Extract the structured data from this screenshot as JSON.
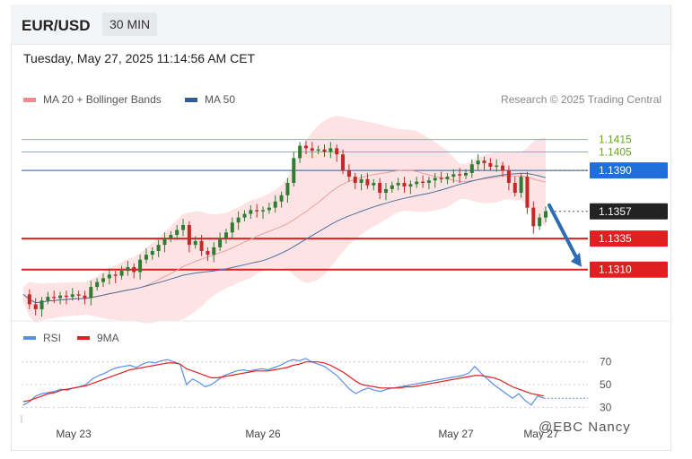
{
  "header": {
    "pair": "EUR/USD",
    "timeframe": "30 MIN"
  },
  "timestamp": "Tuesday, May 27, 2025 11:14:56 AM CET",
  "legend": [
    {
      "label": "MA 20 + Bollinger Bands",
      "color": "#f08c8c"
    },
    {
      "label": "MA 50",
      "color": "#2f5d96"
    }
  ],
  "credit": "Research © 2025 Trading Central",
  "watermark": "@EBC Nancy",
  "colors": {
    "bb_fill": "#fde3e3",
    "ma20": "#e9a0a0",
    "ma50": "#4a6fa5",
    "up": "#2e7d32",
    "down": "#c62828",
    "resistance_green": "#8bc34a",
    "support_red": "#e02020",
    "current_dark": "#222222",
    "ma50_blue": "#1e6fd9",
    "rsi": "#5a8ee6",
    "rsi_ma": "#e02020",
    "arrow": "#2e6bb5"
  },
  "chart_data": [
    {
      "type": "candlestick",
      "title": "",
      "x_ticks": [
        "May 23",
        "May 26",
        "May 27",
        "May 27"
      ],
      "y_range": [
        1.127,
        1.1435
      ],
      "close_path": [
        1.129,
        1.1282,
        1.1278,
        1.1285,
        1.1288,
        1.1287,
        1.1289,
        1.1288,
        1.129,
        1.1289,
        1.1287,
        1.1296,
        1.13,
        1.1303,
        1.1306,
        1.1305,
        1.1309,
        1.1312,
        1.1308,
        1.1318,
        1.1322,
        1.1325,
        1.133,
        1.1335,
        1.1338,
        1.1342,
        1.1346,
        1.133,
        1.1333,
        1.1325,
        1.1322,
        1.1328,
        1.1335,
        1.134,
        1.1348,
        1.1352,
        1.1355,
        1.1358,
        1.1357,
        1.1358,
        1.136,
        1.1365,
        1.137,
        1.138,
        1.14,
        1.141,
        1.1408,
        1.1406,
        1.1407,
        1.1405,
        1.1408,
        1.1403,
        1.139,
        1.1385,
        1.138,
        1.1383,
        1.1378,
        1.138,
        1.1372,
        1.1375,
        1.1378,
        1.138,
        1.1377,
        1.1379,
        1.1381,
        1.138,
        1.1382,
        1.1384,
        1.1383,
        1.1385,
        1.1387,
        1.1386,
        1.1388,
        1.1395,
        1.1398,
        1.1396,
        1.1393,
        1.1394,
        1.139,
        1.138,
        1.1372,
        1.1385,
        1.136,
        1.1345,
        1.1352,
        1.1357
      ],
      "levels": [
        {
          "value": 1.1415,
          "label": "1.1415",
          "kind": "resistance"
        },
        {
          "value": 1.1405,
          "label": "1.1405",
          "kind": "resistance"
        },
        {
          "value": 1.139,
          "label": "1.1390",
          "kind": "ma50"
        },
        {
          "value": 1.1357,
          "label": "1.1357",
          "kind": "current"
        },
        {
          "value": 1.1335,
          "label": "1.1335",
          "kind": "support"
        },
        {
          "value": 1.131,
          "label": "1.1310",
          "kind": "support"
        }
      ],
      "forecast_arrow": {
        "from": 1.1362,
        "to": 1.131
      }
    },
    {
      "type": "line",
      "legend": [
        {
          "label": "RSI",
          "color": "#5a8ee6"
        },
        {
          "label": "9MA",
          "color": "#e02020"
        }
      ],
      "y_ticks": [
        "70",
        "50",
        "30"
      ],
      "y_range": [
        20,
        80
      ],
      "rsi": [
        32,
        35,
        40,
        42,
        43,
        44,
        46,
        45,
        47,
        48,
        50,
        55,
        58,
        60,
        63,
        65,
        66,
        67,
        65,
        68,
        70,
        69,
        71,
        72,
        70,
        68,
        50,
        55,
        52,
        48,
        50,
        54,
        58,
        60,
        62,
        63,
        62,
        63,
        64,
        63,
        65,
        67,
        70,
        72,
        71,
        73,
        70,
        68,
        66,
        62,
        58,
        52,
        46,
        42,
        45,
        47,
        45,
        44,
        46,
        47,
        48,
        49,
        50,
        51,
        52,
        53,
        54,
        55,
        56,
        57,
        58,
        60,
        66,
        60,
        55,
        50,
        46,
        42,
        38,
        42,
        36,
        32,
        40,
        38
      ],
      "rsi_ma": [
        35,
        36,
        38,
        40,
        42,
        43,
        45,
        46,
        47,
        48,
        49,
        51,
        53,
        55,
        57,
        59,
        61,
        63,
        64,
        65,
        66,
        67,
        68,
        69,
        69,
        68,
        64,
        62,
        60,
        58,
        56,
        56,
        57,
        58,
        59,
        60,
        61,
        62,
        62,
        62,
        63,
        64,
        65,
        67,
        68,
        70,
        70,
        70,
        69,
        67,
        64,
        61,
        57,
        53,
        50,
        49,
        48,
        47,
        47,
        47,
        47,
        48,
        48,
        49,
        50,
        51,
        52,
        53,
        54,
        55,
        56,
        57,
        58,
        58,
        57,
        56,
        54,
        51,
        48,
        46,
        44,
        42,
        41,
        40
      ]
    }
  ]
}
